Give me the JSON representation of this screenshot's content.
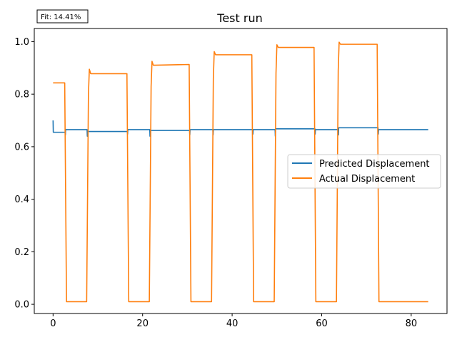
{
  "chart_data": {
    "type": "line",
    "title": "Test run",
    "xlabel": "",
    "ylabel": "",
    "annotation": "Fit: 14.41%",
    "xlim": [
      -4.2,
      88.0
    ],
    "ylim": [
      -0.035,
      1.05
    ],
    "xticks": [
      0,
      20,
      40,
      60,
      80
    ],
    "xtick_labels": [
      "0",
      "20",
      "40",
      "60",
      "80"
    ],
    "yticks": [
      0.0,
      0.2,
      0.4,
      0.6,
      0.8,
      1.0
    ],
    "ytick_labels": [
      "0.0",
      "0.2",
      "0.4",
      "0.6",
      "0.8",
      "1.0"
    ],
    "grid": false,
    "legend_position": "center-right",
    "series": [
      {
        "name": "Predicted Displacement",
        "color": "#1f77b4",
        "x": [
          0,
          0.05,
          0.1,
          2.7,
          2.75,
          2.8,
          7.6,
          7.65,
          7.7,
          16.6,
          16.65,
          16.7,
          21.6,
          21.65,
          21.7,
          30.5,
          30.55,
          30.6,
          35.7,
          35.75,
          35.8,
          44.6,
          44.65,
          44.7,
          49.6,
          49.65,
          49.7,
          58.5,
          58.55,
          58.6,
          63.7,
          63.75,
          63.8,
          72.6,
          72.65,
          72.7,
          83.8
        ],
        "y": [
          0.7,
          0.655,
          0.655,
          0.655,
          0.645,
          0.665,
          0.665,
          0.64,
          0.658,
          0.658,
          0.648,
          0.665,
          0.665,
          0.64,
          0.662,
          0.662,
          0.645,
          0.665,
          0.665,
          0.645,
          0.665,
          0.665,
          0.648,
          0.665,
          0.665,
          0.64,
          0.668,
          0.668,
          0.648,
          0.665,
          0.665,
          0.645,
          0.672,
          0.672,
          0.648,
          0.665,
          0.665
        ]
      },
      {
        "name": "Actual Displacement",
        "color": "#ff7f0e",
        "x": [
          0,
          2.6,
          3.0,
          7.5,
          7.9,
          8.1,
          8.4,
          16.5,
          16.9,
          21.5,
          21.9,
          22.1,
          22.4,
          30.4,
          30.8,
          35.4,
          35.8,
          36.0,
          36.3,
          44.4,
          44.8,
          49.4,
          49.8,
          50.0,
          50.3,
          58.3,
          58.7,
          63.3,
          63.7,
          63.9,
          64.2,
          72.4,
          72.8,
          83.8
        ],
        "y": [
          0.843,
          0.843,
          0.01,
          0.01,
          0.8,
          0.895,
          0.878,
          0.878,
          0.01,
          0.01,
          0.83,
          0.925,
          0.91,
          0.913,
          0.01,
          0.01,
          0.86,
          0.962,
          0.95,
          0.95,
          0.01,
          0.01,
          0.88,
          0.988,
          0.978,
          0.978,
          0.01,
          0.01,
          0.89,
          0.998,
          0.99,
          0.99,
          0.01,
          0.01
        ]
      }
    ]
  }
}
